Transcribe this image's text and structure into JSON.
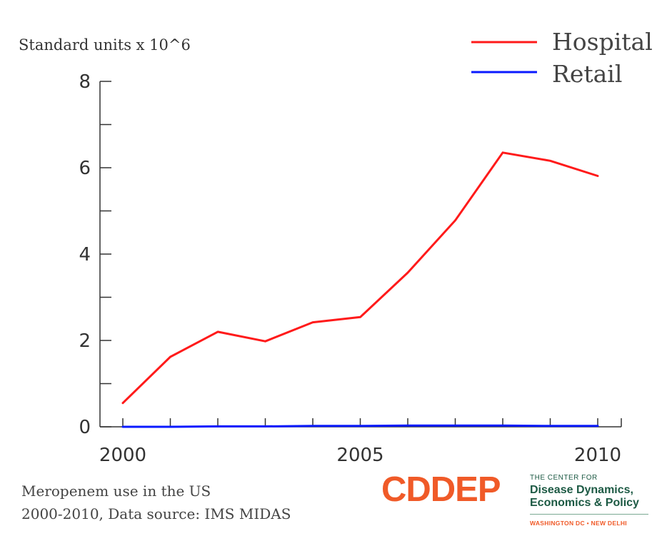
{
  "chart_data": {
    "type": "line",
    "unit_label": "Standard units x 10^6",
    "x": [
      2000,
      2001,
      2002,
      2003,
      2004,
      2005,
      2006,
      2007,
      2008,
      2009,
      2010
    ],
    "series": [
      {
        "name": "Hospital",
        "color": "#ff1a1a",
        "values": [
          0.55,
          1.62,
          2.2,
          1.98,
          2.42,
          2.54,
          3.57,
          4.78,
          6.35,
          6.16,
          5.81
        ]
      },
      {
        "name": "Retail",
        "color": "#0a1aff",
        "values": [
          0.0,
          0.0,
          0.01,
          0.01,
          0.02,
          0.02,
          0.03,
          0.03,
          0.03,
          0.02,
          0.02
        ]
      }
    ],
    "xlim": [
      2000,
      2010
    ],
    "ylim": [
      0,
      8
    ],
    "y_ticks": [
      0,
      2,
      4,
      6,
      8
    ],
    "y_tick_labels": [
      "0",
      "2",
      "4",
      "6",
      "8"
    ],
    "x_ticks": [
      2000,
      2005,
      2010
    ],
    "x_tick_labels": [
      "2000",
      "2005",
      "2010"
    ],
    "grid": false,
    "legend": "top-right"
  },
  "caption": {
    "line1": "Meropenem use in the US",
    "line2": "2000-2010, Data source: IMS MIDAS"
  },
  "logo": {
    "acronym": "CDDEP",
    "small": "THE CENTER FOR",
    "line1": "Disease Dynamics,",
    "line2": "Economics & Policy",
    "cities": "WASHINGTON DC • NEW DELHI"
  }
}
